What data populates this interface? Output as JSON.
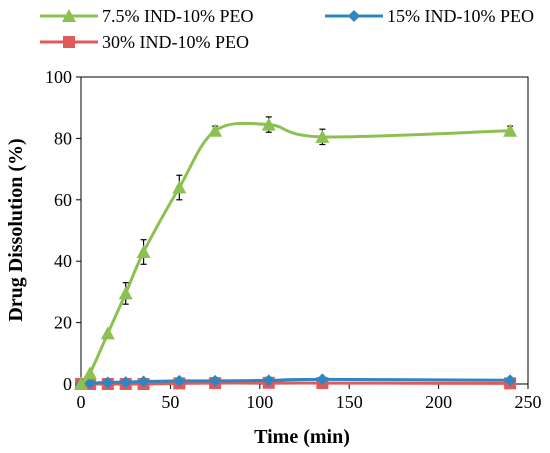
{
  "chart_data": {
    "type": "line",
    "title": "",
    "xlabel": "Time (min)",
    "ylabel": "Drug Dissolution (%)",
    "xlim": [
      0,
      250
    ],
    "ylim": [
      0,
      100
    ],
    "xticks": [
      "0",
      "50",
      "100",
      "150",
      "200",
      "250"
    ],
    "yticks": [
      "0",
      "20",
      "40",
      "60",
      "80",
      "100"
    ],
    "grid": false,
    "legend_position": "top",
    "series": [
      {
        "name": "7.5% IND-10% PEO",
        "color": "#8cc152",
        "marker": "triangle",
        "x": [
          0,
          5,
          15,
          25,
          35,
          55,
          75,
          105,
          135,
          240
        ],
        "y": [
          0,
          3.5,
          16.5,
          29.5,
          43,
          64,
          82.5,
          84.5,
          80.5,
          82.5
        ],
        "error": [
          0,
          0,
          0,
          3.5,
          4,
          4,
          1.5,
          2.5,
          2.5,
          1.5
        ]
      },
      {
        "name": "15% IND-10% PEO",
        "color": "#2e86c1",
        "marker": "diamond",
        "x": [
          0,
          5,
          15,
          25,
          35,
          55,
          75,
          105,
          135,
          240
        ],
        "y": [
          0,
          0.3,
          0.5,
          0.6,
          0.8,
          1.0,
          1.0,
          1.2,
          1.5,
          1.2
        ],
        "error": [
          0,
          0,
          0,
          0,
          0,
          0,
          0,
          0,
          0,
          0
        ]
      },
      {
        "name": "30% IND-10% PEO",
        "color": "#e05a5a",
        "marker": "square",
        "x": [
          0,
          5,
          15,
          25,
          35,
          55,
          75,
          105,
          135,
          240
        ],
        "y": [
          0,
          0,
          0,
          0,
          0,
          0.2,
          0.3,
          0.4,
          0.3,
          0.2
        ],
        "error": [
          0,
          0,
          0,
          0,
          0,
          0,
          0,
          0,
          0,
          0
        ]
      }
    ]
  }
}
